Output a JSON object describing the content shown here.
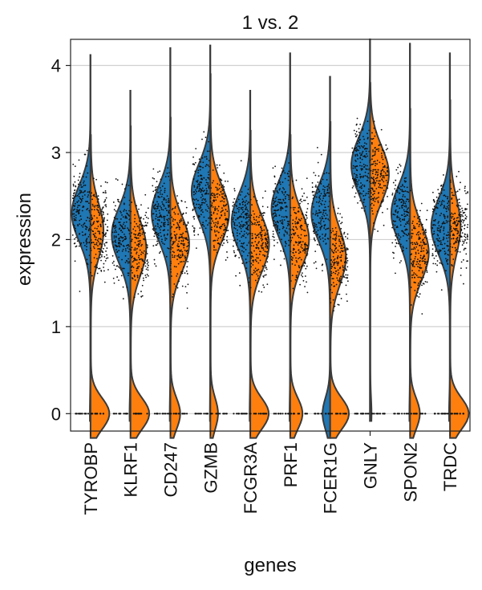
{
  "chart_data": {
    "type": "violin",
    "title": "1 vs. 2",
    "xlabel": "genes",
    "ylabel": "expression",
    "ylim": [
      -0.2,
      4.3
    ],
    "yticks": [
      0,
      1,
      2,
      3,
      4
    ],
    "grid": "horizontal",
    "split": true,
    "colors": {
      "left": "#1f77b4",
      "right": "#ff7f0e",
      "outline": "#3a3a3a"
    },
    "categories": [
      "TYROBP",
      "KLRF1",
      "CD247",
      "GZMB",
      "FCGR3A",
      "PRF1",
      "FCER1G",
      "GNLY",
      "SPON2",
      "TRDC"
    ],
    "series": [
      {
        "side": "left",
        "max": [
          4.12,
          3.71,
          4.2,
          4.23,
          3.71,
          4.14,
          3.87,
          4.3,
          4.25,
          4.14
        ],
        "modes": [
          2.3,
          2.05,
          2.3,
          2.55,
          2.2,
          2.35,
          2.3,
          2.85,
          2.3,
          2.15
        ],
        "zero_fraction": [
          0.02,
          0.03,
          0.02,
          0.01,
          0.02,
          0.02,
          0.25,
          0.0,
          0.02,
          0.03
        ]
      },
      {
        "side": "right",
        "max": [
          3.2,
          3.3,
          3.4,
          3.9,
          3.25,
          3.2,
          3.35,
          3.8,
          3.5,
          3.6
        ],
        "modes": [
          2.1,
          1.9,
          1.95,
          2.3,
          1.95,
          2.0,
          1.8,
          2.75,
          1.85,
          2.15
        ],
        "zero_fraction": [
          0.55,
          0.5,
          0.3,
          0.25,
          0.45,
          0.35,
          0.5,
          0.05,
          0.3,
          0.6
        ]
      }
    ]
  }
}
